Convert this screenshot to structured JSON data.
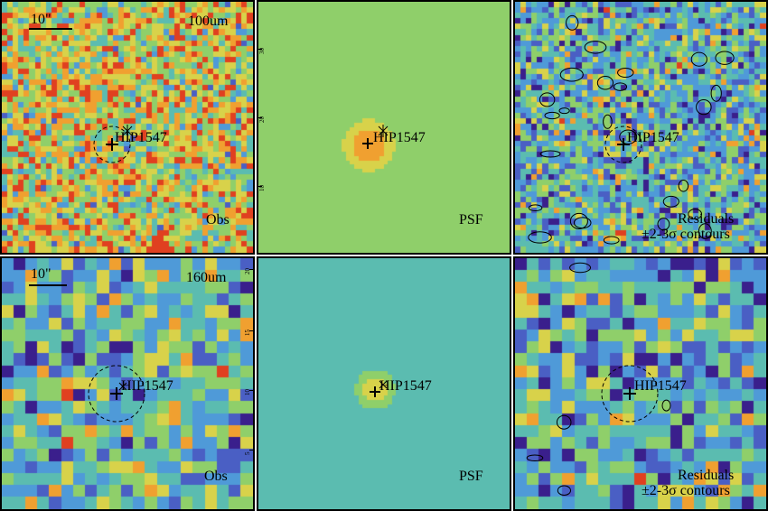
{
  "source_name": "HIP1547",
  "scale_bar_label": "10\"",
  "rows": [
    {
      "band": "100um",
      "panels": [
        {
          "kind": "obs",
          "label": "Obs"
        },
        {
          "kind": "psf",
          "label": "PSF",
          "ticks": [
            "30",
            "20",
            "10"
          ]
        },
        {
          "kind": "res",
          "label_line1": "Residuals",
          "label_line2": "±2-3σ contours"
        }
      ]
    },
    {
      "band": "160um",
      "panels": [
        {
          "kind": "obs",
          "label": "Obs",
          "ticks": [
            "20",
            "15",
            "10",
            "5"
          ]
        },
        {
          "kind": "psf",
          "label": "PSF"
        },
        {
          "kind": "res",
          "label_line1": "Residuals",
          "label_line2": "±2-3σ contours"
        }
      ]
    }
  ],
  "colormap": [
    "#3a1f8c",
    "#4a5fc4",
    "#4f9ad8",
    "#5bbcb0",
    "#8fcf6a",
    "#d8d24a",
    "#f0a030",
    "#e04020"
  ]
}
